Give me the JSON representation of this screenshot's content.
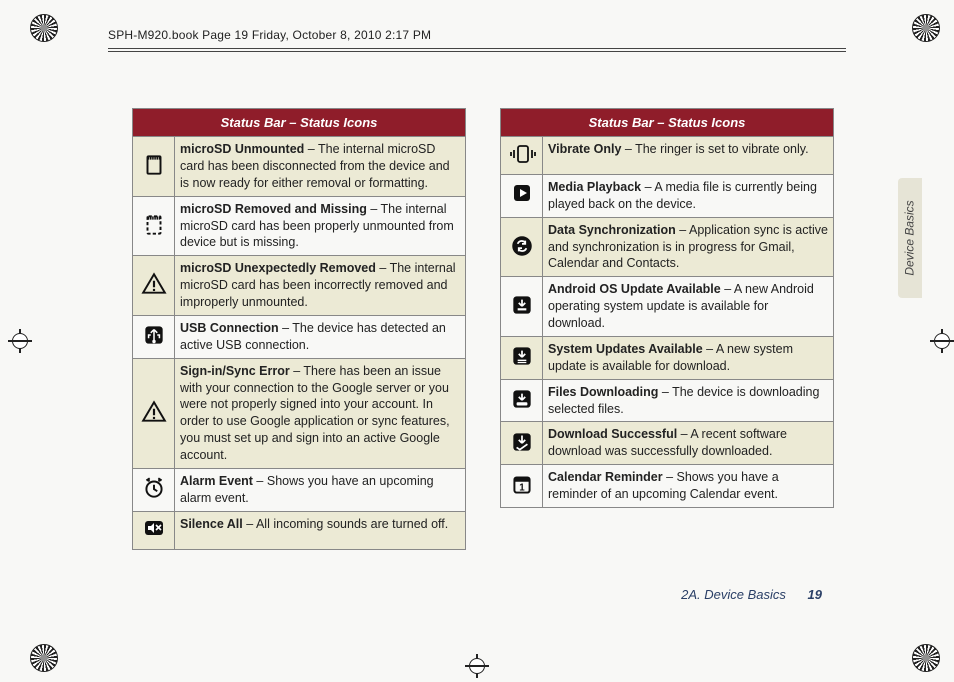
{
  "page_header": "SPH-M920.book  Page 19  Friday, October 8, 2010  2:17 PM",
  "side_tab": "Device Basics",
  "footer": {
    "section": "2A. Device Basics",
    "page": "19"
  },
  "left": {
    "title": "Status Bar – Status Icons",
    "rows": [
      {
        "icon": "sd",
        "term": "microSD Unmounted",
        "desc": " – The internal microSD card has been disconnected from the device and is now ready for either removal or formatting."
      },
      {
        "icon": "sd-miss",
        "term": "microSD Removed and Missing",
        "desc": " – The internal microSD card has been properly unmounted from device but is missing."
      },
      {
        "icon": "warn",
        "term": "microSD Unexpectedly Removed",
        "desc": " – The internal microSD card has been incorrectly removed and improperly unmounted."
      },
      {
        "icon": "usb",
        "term": "USB Connection",
        "desc": " – The device has detected an active USB connection."
      },
      {
        "icon": "warn",
        "term": "Sign-in/Sync Error",
        "desc": " – There has been an issue with your connection to the Google server or you were not properly signed into your account. In order to use Google application or sync features, you must set up and sign into an active Google account."
      },
      {
        "icon": "alarm",
        "term": "Alarm Event",
        "desc": " – Shows you have an upcoming alarm event."
      },
      {
        "icon": "mute",
        "term": "Silence All",
        "desc": " – All incoming sounds are turned off."
      }
    ]
  },
  "right": {
    "title": "Status Bar – Status Icons",
    "rows": [
      {
        "icon": "vibrate",
        "term": "Vibrate Only",
        "desc": " – The ringer is set to vibrate only."
      },
      {
        "icon": "play",
        "term": "Media Playback",
        "desc": " – A media file is currently being played back on the device."
      },
      {
        "icon": "sync",
        "term": "Data Synchronization",
        "desc": " – Application sync is active and synchronization is in progress for Gmail, Calendar and Contacts."
      },
      {
        "icon": "android",
        "term": "Android OS Update Available",
        "desc": " – A new Android operating system update is available for download."
      },
      {
        "icon": "sysupd",
        "term": "System Updates Available",
        "desc": " – A new system update is available for download."
      },
      {
        "icon": "download",
        "term": "Files Downloading",
        "desc": " – The device is downloading selected files."
      },
      {
        "icon": "dl-done",
        "term": "Download Successful",
        "desc": " – A recent software download was successfully downloaded."
      },
      {
        "icon": "calendar",
        "term": "Calendar Reminder",
        "desc": " – Shows you have a reminder of an upcoming Calendar event."
      }
    ]
  },
  "shade_color": "#ecead5",
  "header_bg": "#8f1d2a"
}
